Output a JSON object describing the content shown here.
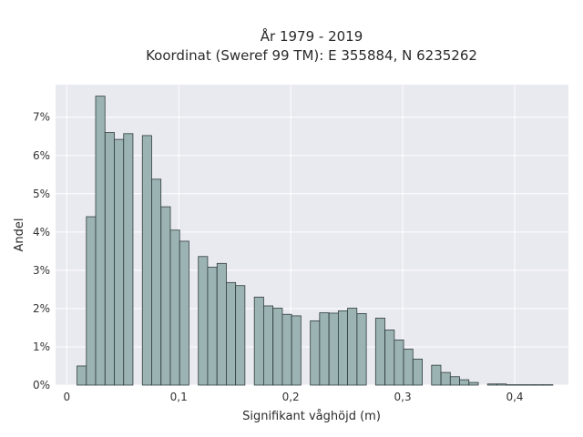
{
  "chart_data": {
    "type": "bar",
    "title_line1": "År 1979 - 2019",
    "title_line2": "Koordinat (Sweref 99 TM): E 355884, N 6235262",
    "xlabel": "Signifikant våghöjd (m)",
    "ylabel": "Andel",
    "xlim": [
      -0.01,
      0.448
    ],
    "ylim": [
      0,
      0.0785
    ],
    "bin_width": 0.0083,
    "bin_starts": [
      0.0092,
      0.0175,
      0.0258,
      0.0342,
      0.0425,
      0.0508,
      0.0592,
      0.0675,
      0.0758,
      0.0842,
      0.0925,
      0.1008,
      0.1092,
      0.1175,
      0.1258,
      0.1342,
      0.1425,
      0.1508,
      0.1592,
      0.1675,
      0.1758,
      0.1842,
      0.1925,
      0.2008,
      0.2092,
      0.2175,
      0.2258,
      0.2342,
      0.2425,
      0.2508,
      0.2592,
      0.2675,
      0.2758,
      0.2842,
      0.2925,
      0.3008,
      0.3092,
      0.3175,
      0.3258,
      0.3342,
      0.3425,
      0.3508,
      0.3592,
      0.3675,
      0.3758,
      0.3842,
      0.3925,
      0.4008,
      0.4092,
      0.4175,
      0.4258
    ],
    "values": [
      0.005,
      0.044,
      0.0755,
      0.066,
      0.0642,
      0.0657,
      0,
      0.0652,
      0.0538,
      0.0466,
      0.0405,
      0.0376,
      0,
      0.0336,
      0.0308,
      0.0318,
      0.0268,
      0.026,
      0,
      0.023,
      0.0207,
      0.0201,
      0.0185,
      0.0181,
      0,
      0.0168,
      0.0189,
      0.0188,
      0.0194,
      0.0201,
      0.0187,
      0,
      0.0175,
      0.0144,
      0.0118,
      0.0094,
      0.0068,
      0,
      0.0052,
      0.0033,
      0.0022,
      0.0014,
      0.0007,
      0,
      0.0003,
      0.0003,
      0.0001,
      0.0001,
      0.0001,
      0.0001,
      0.0001
    ],
    "xticks": [
      0,
      0.1,
      0.2,
      0.3,
      0.4
    ],
    "xtick_labels": [
      "0",
      "0,1",
      "0,2",
      "0,3",
      "0,4"
    ],
    "yticks": [
      0,
      0.01,
      0.02,
      0.03,
      0.04,
      0.05,
      0.06,
      0.07
    ],
    "ytick_labels": [
      "0%",
      "1%",
      "2%",
      "3%",
      "4%",
      "5%",
      "6%",
      "7%"
    ],
    "grid": true,
    "colors": {
      "plot_background": "#e9e9f0",
      "grid": "#ffffff",
      "bar_fill": "#9cb3b3",
      "bar_edge": "#2f3d3d"
    }
  }
}
